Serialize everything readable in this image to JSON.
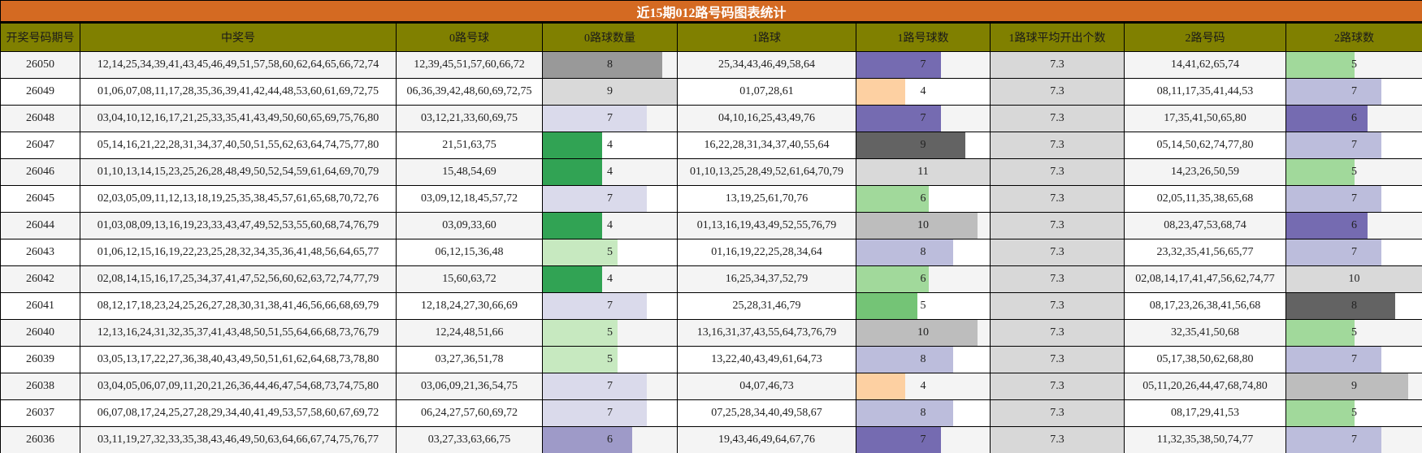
{
  "title": "近15期012路号码图表统计",
  "headers": [
    "开奖号码期号",
    "中奖号",
    "0路号球",
    "0路球数量",
    "1路球",
    "1路号球数",
    "1路球平均开出个数",
    "2路号码",
    "2路球数"
  ],
  "bar_max": {
    "zero": 9,
    "one": 11,
    "two": 10
  },
  "rows": [
    {
      "period": "26050",
      "numbers": "12,14,25,34,39,41,43,45,46,49,51,57,58,60,62,64,65,66,72,74",
      "zero_balls": "12,39,45,51,57,60,66,72",
      "zero_count": "8",
      "zero_color": "#999999",
      "one_balls": "25,34,43,46,49,58,64",
      "one_count": "7",
      "one_color": "#756bb1",
      "one_avg": "7.3",
      "two_balls": "14,41,62,65,74",
      "two_count": "5",
      "two_color": "#a1d99b"
    },
    {
      "period": "26049",
      "numbers": "01,06,07,08,11,17,28,35,36,39,41,42,44,48,53,60,61,69,72,75",
      "zero_balls": "06,36,39,42,48,60,69,72,75",
      "zero_count": "9",
      "zero_color": "#d9d9d9",
      "one_balls": "01,07,28,61",
      "one_count": "4",
      "one_color": "#fdd0a2",
      "one_avg": "7.3",
      "two_balls": "08,11,17,35,41,44,53",
      "two_count": "7",
      "two_color": "#bcbddc"
    },
    {
      "period": "26048",
      "numbers": "03,04,10,12,16,17,21,25,33,35,41,43,49,50,60,65,69,75,76,80",
      "zero_balls": "03,12,21,33,60,69,75",
      "zero_count": "7",
      "zero_color": "#dadaeb",
      "one_balls": "04,10,16,25,43,49,76",
      "one_count": "7",
      "one_color": "#756bb1",
      "one_avg": "7.3",
      "two_balls": "17,35,41,50,65,80",
      "two_count": "6",
      "two_color": "#756bb1"
    },
    {
      "period": "26047",
      "numbers": "05,14,16,21,22,28,31,34,37,40,50,51,55,62,63,64,74,75,77,80",
      "zero_balls": "21,51,63,75",
      "zero_count": "4",
      "zero_color": "#31a354",
      "one_balls": "16,22,28,31,34,37,40,55,64",
      "one_count": "9",
      "one_color": "#636363",
      "one_avg": "7.3",
      "two_balls": "05,14,50,62,74,77,80",
      "two_count": "7",
      "two_color": "#bcbddc"
    },
    {
      "period": "26046",
      "numbers": "01,10,13,14,15,23,25,26,28,48,49,50,52,54,59,61,64,69,70,79",
      "zero_balls": "15,48,54,69",
      "zero_count": "4",
      "zero_color": "#31a354",
      "one_balls": "01,10,13,25,28,49,52,61,64,70,79",
      "one_count": "11",
      "one_color": "#d9d9d9",
      "one_avg": "7.3",
      "two_balls": "14,23,26,50,59",
      "two_count": "5",
      "two_color": "#a1d99b"
    },
    {
      "period": "26045",
      "numbers": "02,03,05,09,11,12,13,18,19,25,35,38,45,57,61,65,68,70,72,76",
      "zero_balls": "03,09,12,18,45,57,72",
      "zero_count": "7",
      "zero_color": "#dadaeb",
      "one_balls": "13,19,25,61,70,76",
      "one_count": "6",
      "one_color": "#a1d99b",
      "one_avg": "7.3",
      "two_balls": "02,05,11,35,38,65,68",
      "two_count": "7",
      "two_color": "#bcbddc"
    },
    {
      "period": "26044",
      "numbers": "01,03,08,09,13,16,19,23,33,43,47,49,52,53,55,60,68,74,76,79",
      "zero_balls": "03,09,33,60",
      "zero_count": "4",
      "zero_color": "#31a354",
      "one_balls": "01,13,16,19,43,49,52,55,76,79",
      "one_count": "10",
      "one_color": "#bdbdbd",
      "one_avg": "7.3",
      "two_balls": "08,23,47,53,68,74",
      "two_count": "6",
      "two_color": "#756bb1"
    },
    {
      "period": "26043",
      "numbers": "01,06,12,15,16,19,22,23,25,28,32,34,35,36,41,48,56,64,65,77",
      "zero_balls": "06,12,15,36,48",
      "zero_count": "5",
      "zero_color": "#c7e9c0",
      "one_balls": "01,16,19,22,25,28,34,64",
      "one_count": "8",
      "one_color": "#bcbddc",
      "one_avg": "7.3",
      "two_balls": "23,32,35,41,56,65,77",
      "two_count": "7",
      "two_color": "#bcbddc"
    },
    {
      "period": "26042",
      "numbers": "02,08,14,15,16,17,25,34,37,41,47,52,56,60,62,63,72,74,77,79",
      "zero_balls": "15,60,63,72",
      "zero_count": "4",
      "zero_color": "#31a354",
      "one_balls": "16,25,34,37,52,79",
      "one_count": "6",
      "one_color": "#a1d99b",
      "one_avg": "7.3",
      "two_balls": "02,08,14,17,41,47,56,62,74,77",
      "two_count": "10",
      "two_color": "#d9d9d9"
    },
    {
      "period": "26041",
      "numbers": "08,12,17,18,23,24,25,26,27,28,30,31,38,41,46,56,66,68,69,79",
      "zero_balls": "12,18,24,27,30,66,69",
      "zero_count": "7",
      "zero_color": "#dadaeb",
      "one_balls": "25,28,31,46,79",
      "one_count": "5",
      "one_color": "#74c476",
      "one_avg": "7.3",
      "two_balls": "08,17,23,26,38,41,56,68",
      "two_count": "8",
      "two_color": "#636363"
    },
    {
      "period": "26040",
      "numbers": "12,13,16,24,31,32,35,37,41,43,48,50,51,55,64,66,68,73,76,79",
      "zero_balls": "12,24,48,51,66",
      "zero_count": "5",
      "zero_color": "#c7e9c0",
      "one_balls": "13,16,31,37,43,55,64,73,76,79",
      "one_count": "10",
      "one_color": "#bdbdbd",
      "one_avg": "7.3",
      "two_balls": "32,35,41,50,68",
      "two_count": "5",
      "two_color": "#a1d99b"
    },
    {
      "period": "26039",
      "numbers": "03,05,13,17,22,27,36,38,40,43,49,50,51,61,62,64,68,73,78,80",
      "zero_balls": "03,27,36,51,78",
      "zero_count": "5",
      "zero_color": "#c7e9c0",
      "one_balls": "13,22,40,43,49,61,64,73",
      "one_count": "8",
      "one_color": "#bcbddc",
      "one_avg": "7.3",
      "two_balls": "05,17,38,50,62,68,80",
      "two_count": "7",
      "two_color": "#bcbddc"
    },
    {
      "period": "26038",
      "numbers": "03,04,05,06,07,09,11,20,21,26,36,44,46,47,54,68,73,74,75,80",
      "zero_balls": "03,06,09,21,36,54,75",
      "zero_count": "7",
      "zero_color": "#dadaeb",
      "one_balls": "04,07,46,73",
      "one_count": "4",
      "one_color": "#fdd0a2",
      "one_avg": "7.3",
      "two_balls": "05,11,20,26,44,47,68,74,80",
      "two_count": "9",
      "two_color": "#bdbdbd"
    },
    {
      "period": "26037",
      "numbers": "06,07,08,17,24,25,27,28,29,34,40,41,49,53,57,58,60,67,69,72",
      "zero_balls": "06,24,27,57,60,69,72",
      "zero_count": "7",
      "zero_color": "#dadaeb",
      "one_balls": "07,25,28,34,40,49,58,67",
      "one_count": "8",
      "one_color": "#bcbddc",
      "one_avg": "7.3",
      "two_balls": "08,17,29,41,53",
      "two_count": "5",
      "two_color": "#a1d99b"
    },
    {
      "period": "26036",
      "numbers": "03,11,19,27,32,33,35,38,43,46,49,50,63,64,66,67,74,75,76,77",
      "zero_balls": "03,27,33,63,66,75",
      "zero_count": "6",
      "zero_color": "#9e9ac8",
      "one_balls": "19,43,46,49,64,67,76",
      "one_count": "7",
      "one_color": "#756bb1",
      "one_avg": "7.3",
      "two_balls": "11,32,35,38,50,74,77",
      "two_count": "7",
      "two_color": "#bcbddc"
    }
  ]
}
